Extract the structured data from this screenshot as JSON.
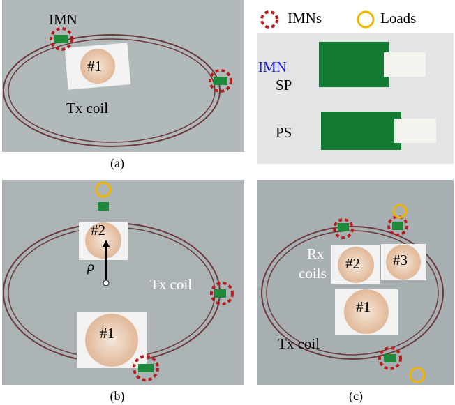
{
  "legend": {
    "imn": "IMNs",
    "load": "Loads"
  },
  "panels": [
    {
      "caption": "(a)",
      "labels": {
        "imn": "IMN",
        "rx": "#1",
        "tx": "Tx coil"
      }
    },
    {
      "labels": {
        "imn": "IMN",
        "sp": "SP",
        "ps": "PS"
      }
    },
    {
      "caption": "(b)",
      "labels": {
        "rx2": "#2",
        "rho": "ρ",
        "tx": "Tx coil",
        "rx1": "#1"
      }
    },
    {
      "caption": "(c)",
      "labels": {
        "rx_line1": "Rx",
        "rx_line2": "coils",
        "rx2": "#2",
        "rx3": "#3",
        "rx1": "#1",
        "tx": "Tx coil"
      }
    }
  ]
}
